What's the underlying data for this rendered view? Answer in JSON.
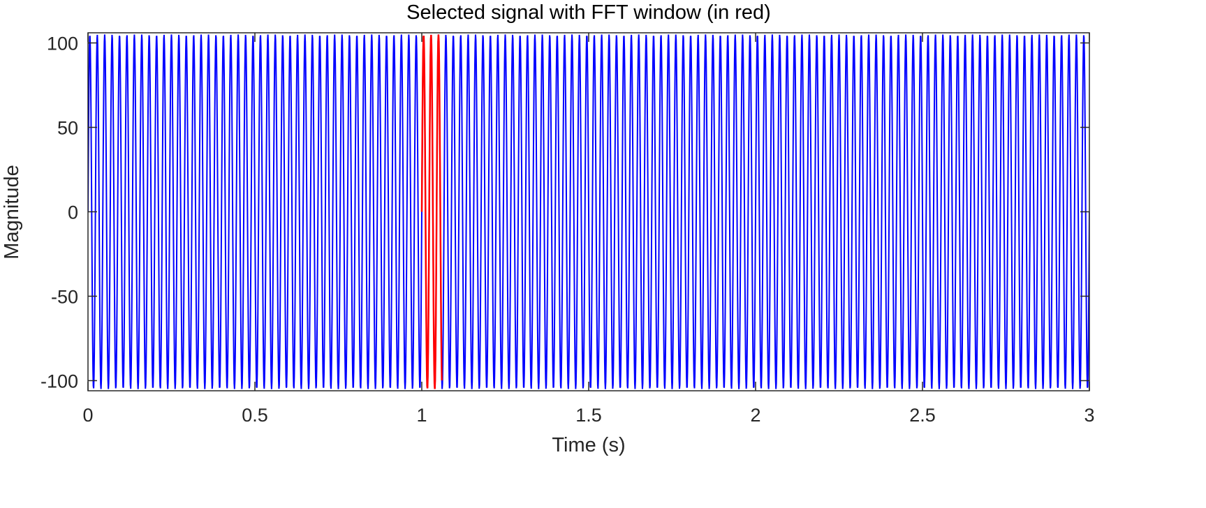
{
  "chart_data": {
    "type": "line",
    "title": "Selected signal with FFT window (in red)",
    "xlabel": "Time (s)",
    "ylabel": "Magnitude",
    "xlim": [
      0,
      3
    ],
    "ylim": [
      -106,
      106
    ],
    "xticks": [
      0,
      0.5,
      1,
      1.5,
      2,
      2.5,
      3
    ],
    "xtick_labels": [
      "0",
      "0.5",
      "1",
      "1.5",
      "2",
      "2.5",
      "3"
    ],
    "yticks": [
      -100,
      -50,
      0,
      50,
      100
    ],
    "ytick_labels": [
      "-100",
      "-50",
      "0",
      "50",
      "100"
    ],
    "grid": false,
    "series": [
      {
        "role": "signal",
        "color": "#0000ff",
        "waveform": "sine",
        "frequency_hz": 45,
        "amplitude": 105,
        "sample_rate_hz": 1000,
        "t_start": 0,
        "t_end": 3
      },
      {
        "role": "fft-window",
        "color": "#ff0000",
        "t_start": 1.0,
        "t_end": 1.06
      }
    ]
  }
}
